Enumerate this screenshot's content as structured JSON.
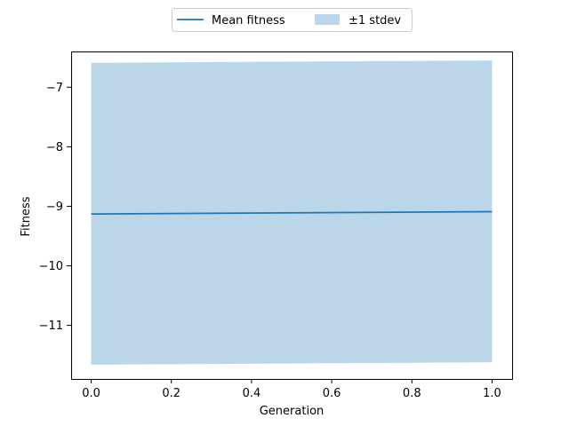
{
  "chart_data": {
    "type": "line",
    "title": "",
    "xlabel": "Generation",
    "ylabel": "Fitness",
    "xlim": [
      -0.05,
      1.05
    ],
    "ylim": [
      -11.9,
      -6.4
    ],
    "x_ticks": [
      0.0,
      0.2,
      0.4,
      0.6,
      0.8,
      1.0
    ],
    "x_tick_labels": [
      "0.0",
      "0.2",
      "0.4",
      "0.6",
      "0.8",
      "1.0"
    ],
    "y_ticks": [
      -11,
      -10,
      -9,
      -8,
      -7
    ],
    "y_tick_labels": [
      "−11",
      "−10",
      "−9",
      "−8",
      "−7"
    ],
    "grid": false,
    "legend_position": "top-center",
    "series": [
      {
        "name": "Mean fitness",
        "kind": "line",
        "color": "#1f77b4",
        "x": [
          0.0,
          1.0
        ],
        "y": [
          -9.13,
          -9.09
        ]
      },
      {
        "name": "±1 stdev",
        "kind": "band",
        "color": "#1f77b4",
        "opacity": 0.3,
        "x": [
          0.0,
          1.0
        ],
        "upper": [
          -6.59,
          -6.55
        ],
        "lower": [
          -11.66,
          -11.62
        ]
      }
    ]
  }
}
